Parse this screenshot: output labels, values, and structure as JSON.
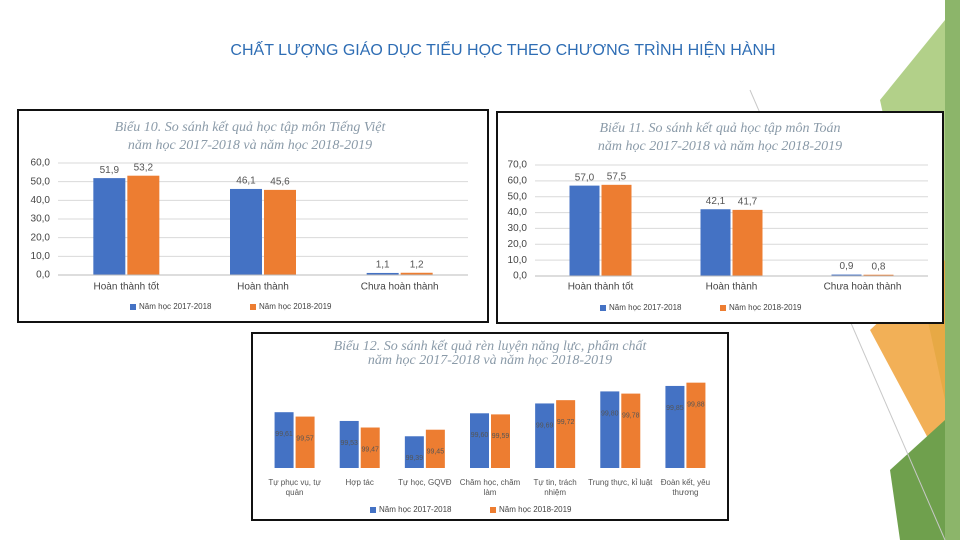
{
  "title": "CHẤT LƯỢNG GIÁO DỤC TIỂU HỌC THEO CHƯƠNG TRÌNH HIỆN HÀNH",
  "chart_data": [
    {
      "type": "bar",
      "title": [
        "Biểu 10. So sánh kết quả học tập môn Tiếng Việt",
        "năm học 2017-2018 và năm học 2018-2019"
      ],
      "categories": [
        "Hoàn thành tốt",
        "Hoàn thành",
        "Chưa hoàn thành"
      ],
      "series": [
        {
          "name": "Năm học 2017-2018",
          "color": "#4472c4",
          "values": [
            51.9,
            46.1,
            1.1
          ],
          "value_labels": [
            "51,9",
            "46,1",
            "1,1"
          ]
        },
        {
          "name": "Năm học 2018-2019",
          "color": "#ed7d31",
          "values": [
            53.2,
            45.6,
            1.2
          ],
          "value_labels": [
            "53,2",
            "45,6",
            "1,2"
          ]
        }
      ],
      "ylim": [
        0,
        60
      ],
      "yticks": [
        {
          "value": 0,
          "label": "0,0"
        },
        {
          "value": 10,
          "label": "10,0"
        },
        {
          "value": 20,
          "label": "20,0"
        },
        {
          "value": 30,
          "label": "30,0"
        },
        {
          "value": 40,
          "label": "40,0"
        },
        {
          "value": 50,
          "label": "50,0"
        },
        {
          "value": 60,
          "label": "60,0"
        }
      ],
      "grid": true
    },
    {
      "type": "bar",
      "title": [
        "Biểu 11. So sánh kết quả học tập môn Toán",
        "năm học 2017-2018 và năm học 2018-2019"
      ],
      "categories": [
        "Hoàn thành tốt",
        "Hoàn thành",
        "Chưa hoàn thành"
      ],
      "series": [
        {
          "name": "Năm học 2017-2018",
          "color": "#4472c4",
          "values": [
            57.0,
            42.1,
            0.9
          ],
          "value_labels": [
            "57,0",
            "42,1",
            "0,9"
          ]
        },
        {
          "name": "Năm học 2018-2019",
          "color": "#ed7d31",
          "values": [
            57.5,
            41.7,
            0.8
          ],
          "value_labels": [
            "57,5",
            "41,7",
            "0,8"
          ]
        }
      ],
      "ylim": [
        0,
        70
      ],
      "yticks": [
        {
          "value": 0,
          "label": "0,0"
        },
        {
          "value": 10,
          "label": "10,0"
        },
        {
          "value": 20,
          "label": "20,0"
        },
        {
          "value": 30,
          "label": "30,0"
        },
        {
          "value": 40,
          "label": "40,0"
        },
        {
          "value": 50,
          "label": "50,0"
        },
        {
          "value": 60,
          "label": "60,0"
        },
        {
          "value": 70,
          "label": "70,0"
        }
      ],
      "grid": true
    },
    {
      "type": "bar",
      "title": [
        "Biểu 12. So sánh kết quả rèn luyện năng lực, phẩm chất",
        "năm học 2017-2018 và năm học 2018-2019"
      ],
      "categories": [
        "Tự phục vụ, tự quản",
        "Hợp tác",
        "Tự học, GQVĐ",
        "Chăm học, chăm làm",
        "Tự tin, trách nhiệm",
        "Trung thực, kỉ luật",
        "Đoàn kết, yêu thương"
      ],
      "series": [
        {
          "name": "Năm học 2017-2018",
          "color": "#4472c4",
          "values": [
            99.61,
            99.53,
            99.39,
            99.6,
            99.69,
            99.8,
            99.85
          ],
          "value_labels": [
            "99,61",
            "99,53",
            "99,39",
            "99,60",
            "99,69",
            "99,80",
            "99,85"
          ]
        },
        {
          "name": "Năm học 2018-2019",
          "color": "#ed7d31",
          "values": [
            99.57,
            99.47,
            99.45,
            99.59,
            99.72,
            99.78,
            99.88
          ],
          "value_labels": [
            "99,57",
            "99,47",
            "99,45",
            "99,59",
            "99,72",
            "99,78",
            "99,88"
          ]
        }
      ],
      "ylim": [
        99.1,
        99.95
      ],
      "grid": false
    }
  ]
}
